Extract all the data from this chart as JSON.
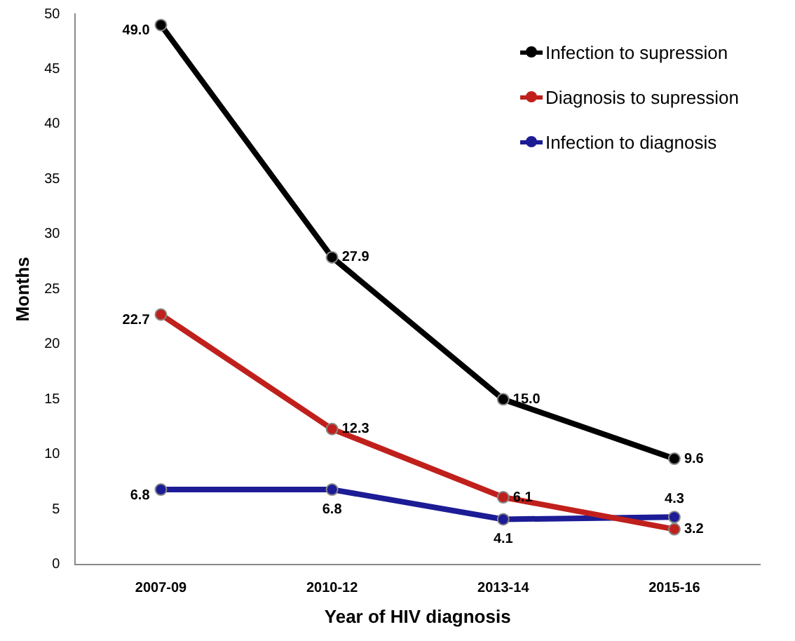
{
  "chart_data": {
    "type": "line",
    "xlabel": "Year of HIV diagnosis",
    "ylabel": "Months",
    "categories": [
      "2007-09",
      "2010-12",
      "2013-14",
      "2015-16"
    ],
    "series": [
      {
        "name": "Infection to supression",
        "color": "#000000",
        "values": [
          49.0,
          27.9,
          15.0,
          9.6
        ],
        "value_labels": [
          "49.0",
          "27.9",
          "15.0",
          "9.6"
        ]
      },
      {
        "name": "Diagnosis to supression",
        "color": "#c0201c",
        "values": [
          22.7,
          12.3,
          6.1,
          3.2
        ],
        "value_labels": [
          "22.7",
          "12.3",
          "6.1",
          "3.2"
        ]
      },
      {
        "name": "Infection to diagnosis",
        "color": "#1c1c96",
        "values": [
          6.8,
          6.8,
          4.1,
          4.3
        ],
        "value_labels": [
          "6.8",
          "6.8",
          "4.1",
          "4.3"
        ]
      }
    ],
    "ylim": [
      0,
      50
    ],
    "yticks": [
      0,
      5,
      10,
      15,
      20,
      25,
      30,
      35,
      40,
      45,
      50
    ],
    "grid": false,
    "legend": "top right",
    "marker": "circle",
    "line_style": "solid"
  }
}
